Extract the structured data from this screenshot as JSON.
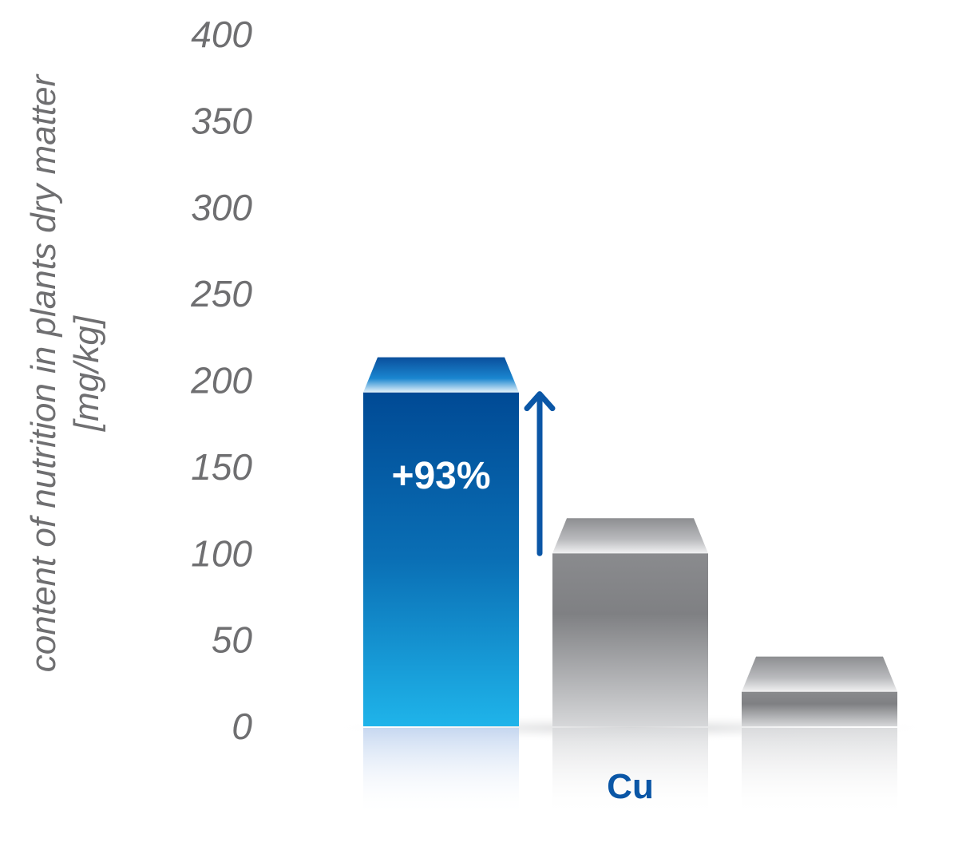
{
  "chart_data": {
    "type": "bar",
    "categories": [
      "",
      "Cu",
      ""
    ],
    "values": [
      193,
      100,
      20
    ],
    "xlabel": "Cu",
    "ylabel_line1": "content of nutrition in plants dry matter",
    "ylabel_line2": "[mg/kg]",
    "ylim": [
      0,
      400
    ],
    "yticks": [
      "0",
      "50",
      "100",
      "150",
      "200",
      "250",
      "300",
      "350",
      "400"
    ],
    "annotation": "+93%",
    "grid": false,
    "colors": {
      "bar_1_top": "#004a95",
      "bar_1_bottom": "#1fb4ea",
      "bar_gray_top": "#808184",
      "bar_gray_bottom": "#d8d9db",
      "arrow": "#0a56a6",
      "category_label": "#0a56a6",
      "tick_label": "#6f6f71"
    }
  }
}
